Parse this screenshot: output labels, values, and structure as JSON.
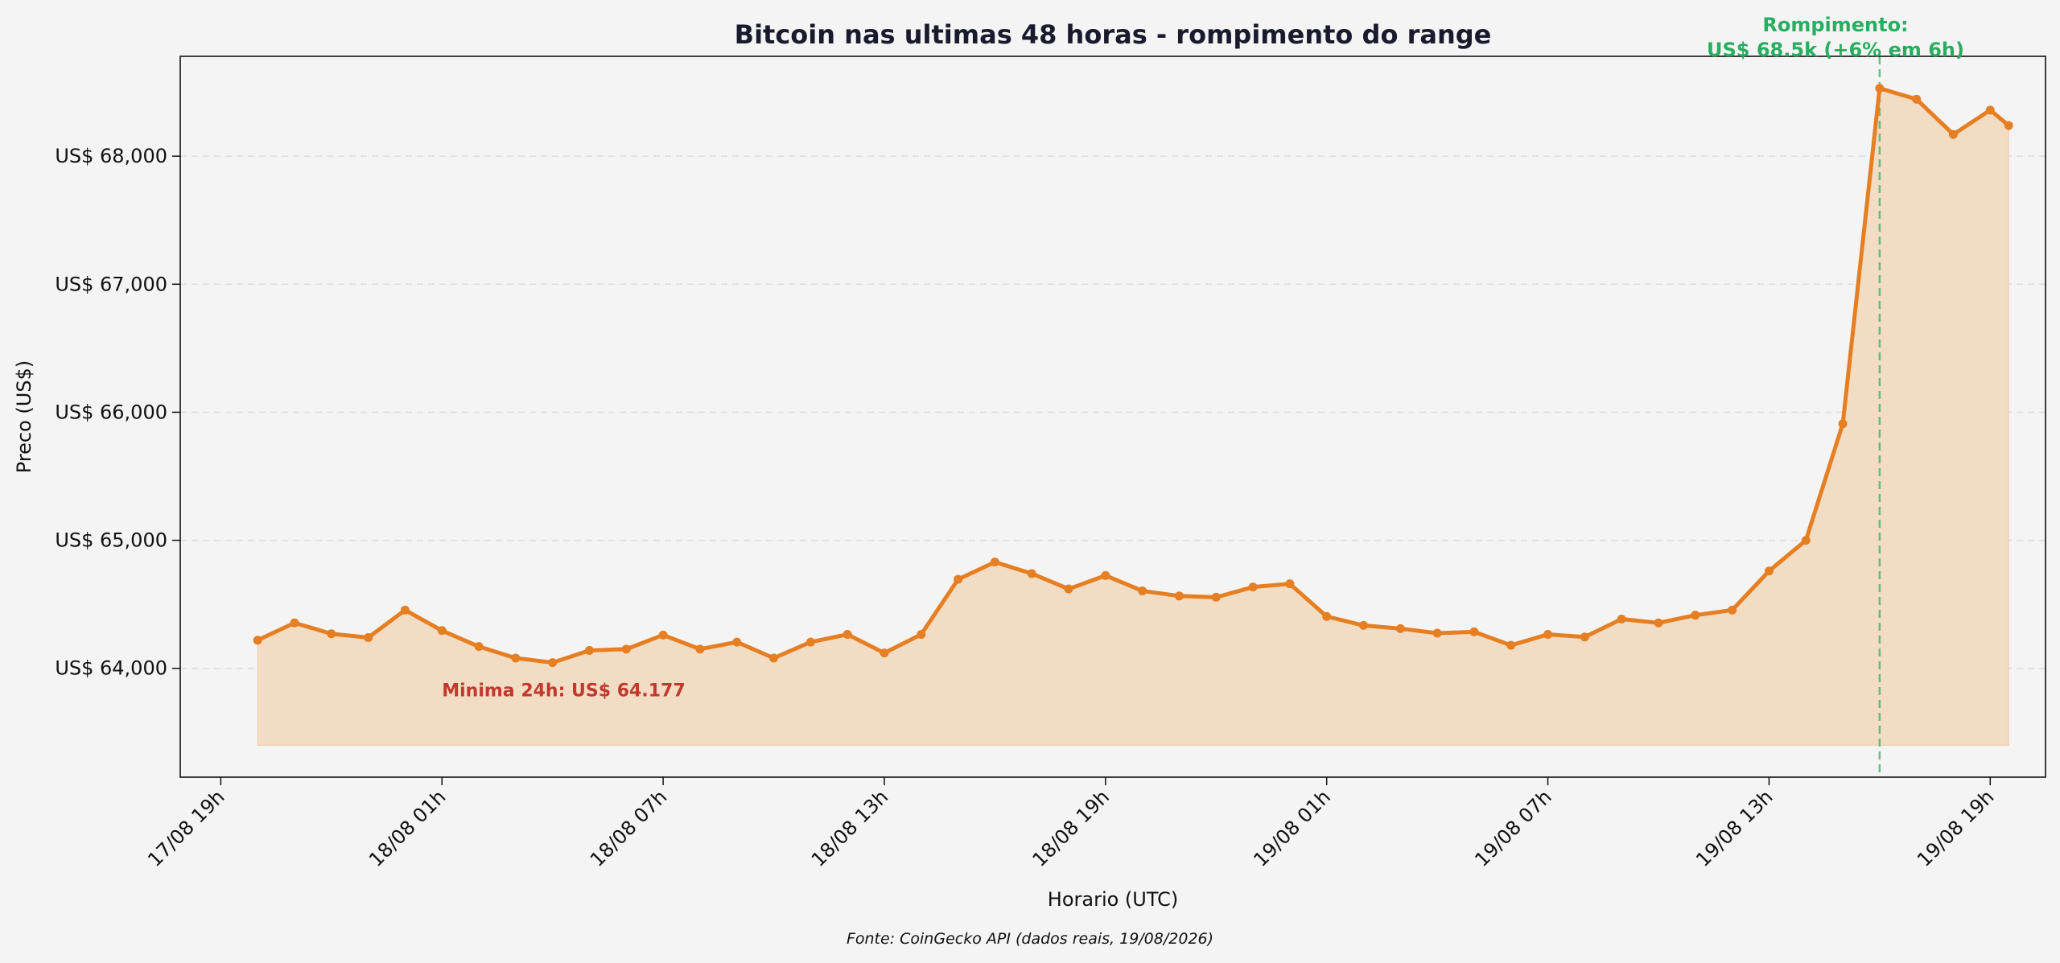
{
  "chart_data": {
    "type": "line",
    "title": "Bitcoin nas ultimas 48 horas - rompimento do range",
    "xlabel": "Horario (UTC)",
    "ylabel": "Preco (US$)",
    "source": "Fonte: CoinGecko API (dados reais, 19/08/2026)",
    "x_start_label": "17/08 19h",
    "x_range_hours": [
      -1.1,
      49.5
    ],
    "ylim": [
      63150,
      68780
    ],
    "x_ticks": [
      {
        "hour": 0,
        "label": "17/08 19h"
      },
      {
        "hour": 6,
        "label": "18/08 01h"
      },
      {
        "hour": 12,
        "label": "18/08 07h"
      },
      {
        "hour": 18,
        "label": "18/08 13h"
      },
      {
        "hour": 24,
        "label": "18/08 19h"
      },
      {
        "hour": 30,
        "label": "19/08 01h"
      },
      {
        "hour": 36,
        "label": "19/08 07h"
      },
      {
        "hour": 42,
        "label": "19/08 13h"
      },
      {
        "hour": 48,
        "label": "19/08 19h"
      }
    ],
    "y_ticks": [
      {
        "value": 64000,
        "label": "US$ 64,000"
      },
      {
        "value": 65000,
        "label": "US$ 65,000"
      },
      {
        "value": 66000,
        "label": "US$ 66,000"
      },
      {
        "value": 67000,
        "label": "US$ 67,000"
      },
      {
        "value": 68000,
        "label": "US$ 68,000"
      }
    ],
    "grid": "y-dashed",
    "fill_baseline": 63400,
    "series": [
      {
        "color": "#e67e22",
        "fill_color": "#f2dcc4",
        "x": [
          1,
          2,
          3,
          4,
          5,
          6,
          7,
          8,
          9,
          10,
          11,
          12,
          13,
          14,
          15,
          16,
          17,
          18,
          19,
          20,
          21,
          22,
          23,
          24,
          25,
          26,
          27,
          28,
          29,
          30,
          31,
          32,
          33,
          34,
          35,
          36,
          37,
          38,
          39,
          40,
          41,
          42,
          43,
          44,
          45,
          46,
          47,
          48,
          48.5
        ],
        "y": [
          64220,
          64355,
          64270,
          64240,
          64455,
          64295,
          64170,
          64080,
          64045,
          64140,
          64150,
          64260,
          64150,
          64205,
          64080,
          64205,
          64265,
          64120,
          64265,
          64695,
          64830,
          64740,
          64620,
          64725,
          64605,
          64565,
          64555,
          64635,
          64660,
          64405,
          64335,
          64310,
          64275,
          64285,
          64180,
          64265,
          64245,
          64385,
          64355,
          64415,
          64455,
          64760,
          65000,
          65910,
          68530,
          68445,
          68170,
          68360,
          68240
        ]
      }
    ],
    "annotations": [
      {
        "type": "vline",
        "x": 45,
        "color": "#27ae60",
        "style": "dashed"
      },
      {
        "type": "text",
        "lines": [
          "Rompimento:",
          "US$ 68.5k (+6% em 6h)"
        ],
        "x": 45,
        "color": "#27ae60"
      },
      {
        "type": "text",
        "text": "Minima 24h: US$ 64.177",
        "x": 6,
        "y": 63780,
        "color": "#c0392b"
      }
    ]
  }
}
